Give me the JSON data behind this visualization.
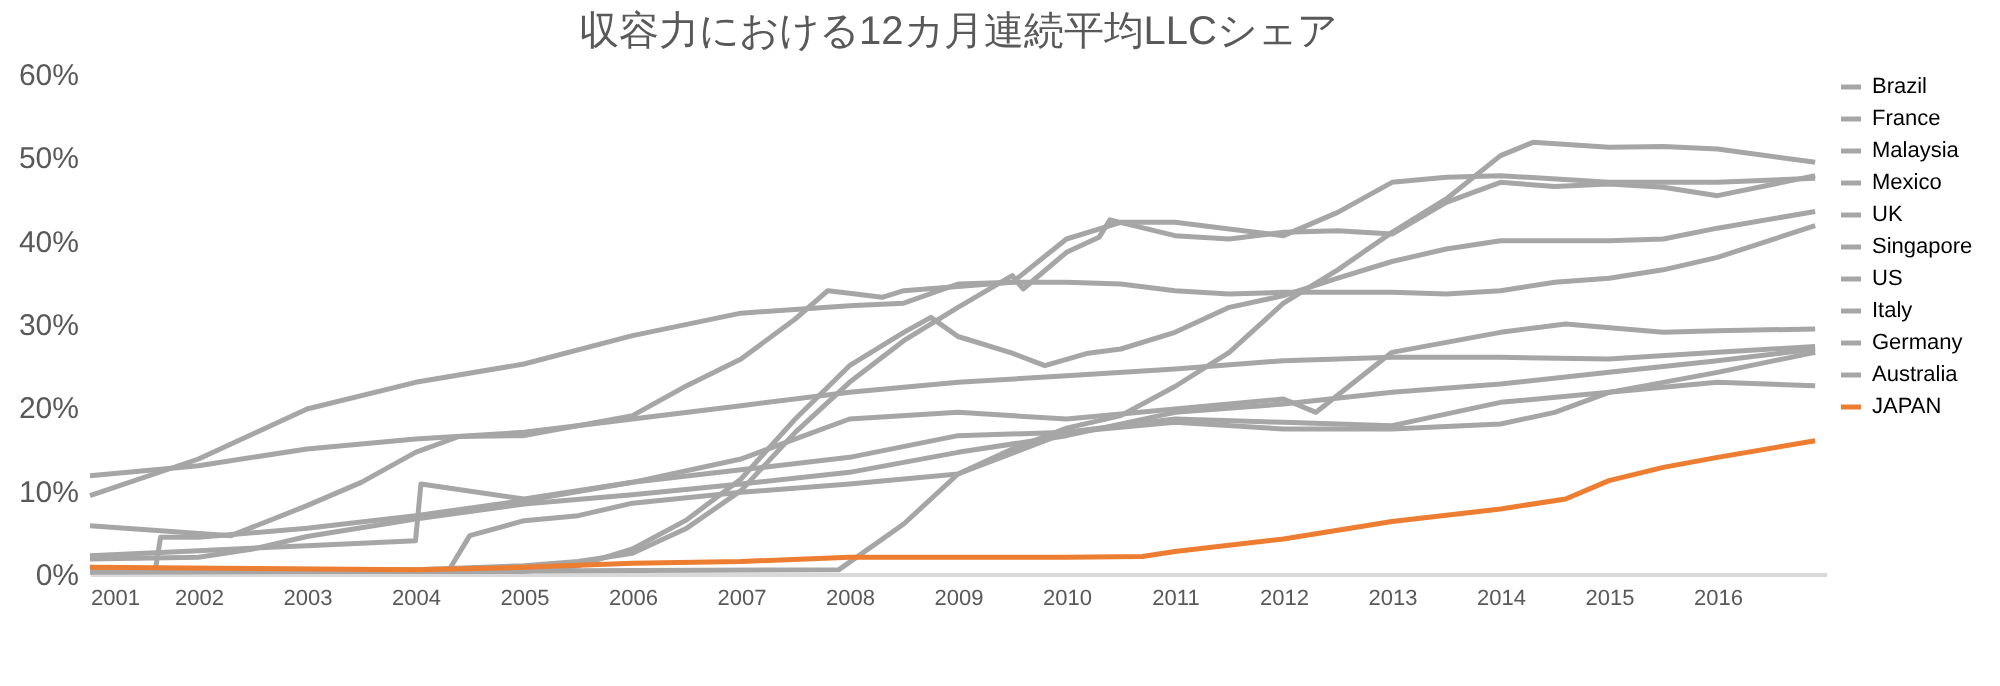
{
  "chart_data": {
    "type": "line",
    "title": "収容力における12カ月連続平均LLCシェア",
    "xlim": [
      2001,
      2017
    ],
    "xticks": [
      2001,
      2002,
      2003,
      2004,
      2005,
      2006,
      2007,
      2008,
      2009,
      2010,
      2011,
      2012,
      2013,
      2014,
      2015,
      2016
    ],
    "ylim": [
      0,
      60
    ],
    "yticks": [
      {
        "value": 0,
        "label": "0%"
      },
      {
        "value": 10,
        "label": "10%"
      },
      {
        "value": 20,
        "label": "20%"
      },
      {
        "value": 30,
        "label": "30%"
      },
      {
        "value": 40,
        "label": "40%"
      },
      {
        "value": 50,
        "label": "50%"
      },
      {
        "value": 60,
        "label": "60%"
      }
    ],
    "grid": false,
    "legend": "right",
    "series": [
      {
        "name": "Brazil",
        "color": "#a6a6a6",
        "x": [
          2001,
          2007.9,
          2008.5,
          2009,
          2009.5,
          2010,
          2010.5,
          2011,
          2011.5,
          2012,
          2012.5,
          2013,
          2013.5,
          2014,
          2014.3,
          2015,
          2015.5,
          2016,
          2016.9
        ],
        "values": [
          0.2,
          0.5,
          6,
          12,
          15,
          17.5,
          19,
          22.5,
          26.6,
          32.5,
          36.5,
          41,
          45,
          50.2,
          51.8,
          51.2,
          51.3,
          51,
          49.4
        ]
      },
      {
        "name": "France",
        "color": "#a6a6a6",
        "x": [
          2001,
          2004,
          2005,
          2005.5,
          2006,
          2006.5,
          2007,
          2007.5,
          2008,
          2008.5,
          2009,
          2009.5,
          2009.6,
          2010,
          2010.3,
          2010.4,
          2011,
          2011.5,
          2012,
          2012.5,
          2013,
          2013.5,
          2014,
          2014.5,
          2015,
          2015.5,
          2016,
          2016.9
        ],
        "values": [
          0.5,
          0.5,
          1,
          1.5,
          2.5,
          5.5,
          10,
          17,
          23,
          28,
          32,
          35.8,
          34.2,
          38.6,
          40.4,
          42.5,
          40.6,
          40.2,
          41,
          41.2,
          40.8,
          44.6,
          47,
          46.5,
          46.8,
          46.4,
          45.4,
          47.8
        ]
      },
      {
        "name": "Malaysia",
        "color": "#a6a6a6",
        "x": [
          2001,
          2002.3,
          2003,
          2003.5,
          2004,
          2004.4,
          2005,
          2005.5,
          2006,
          2006.5,
          2007,
          2007.5,
          2007.8,
          2008,
          2008.3,
          2008.5,
          2009,
          2009.5,
          2010,
          2010.5,
          2011,
          2011.5,
          2012,
          2012.5,
          2013,
          2013.5,
          2014,
          2015,
          2016,
          2016.9
        ],
        "values": [
          5.8,
          4.6,
          8.2,
          11,
          14.6,
          16.5,
          16.6,
          17.8,
          19,
          22.6,
          25.8,
          30.6,
          34,
          33.7,
          33.2,
          34,
          34.5,
          35,
          40.2,
          42.2,
          42.2,
          41.4,
          40.6,
          43.4,
          47,
          47.6,
          47.8,
          47,
          47,
          47.5
        ]
      },
      {
        "name": "Mexico",
        "color": "#a6a6a6",
        "x": [
          2001,
          2005,
          2005.5,
          2006,
          2006.5,
          2007,
          2007.5,
          2008,
          2008.5,
          2008.75,
          2009,
          2009.5,
          2009.8,
          2010.2,
          2010.5,
          2011,
          2011.5,
          2012,
          2012.5,
          2013,
          2013.5,
          2014,
          2015,
          2015.5,
          2016,
          2016.9
        ],
        "values": [
          0.3,
          0.3,
          1,
          3,
          6.5,
          11.4,
          18.6,
          25,
          29,
          30.8,
          28.5,
          26.5,
          25,
          26.5,
          27,
          29,
          32,
          33.4,
          35.5,
          37.5,
          39,
          40,
          40,
          40.2,
          41.5,
          43.5
        ]
      },
      {
        "name": "UK",
        "color": "#a6a6a6",
        "x": [
          2001,
          2002,
          2003,
          2004,
          2005,
          2006,
          2007,
          2008,
          2008.5,
          2009,
          2009.5,
          2010,
          2010.5,
          2011,
          2011.5,
          2012,
          2013,
          2013.5,
          2014,
          2014.5,
          2015,
          2015.5,
          2016,
          2016.9
        ],
        "values": [
          9.4,
          13.8,
          19.8,
          23,
          25.2,
          28.6,
          31.3,
          32.2,
          32.5,
          34.8,
          35,
          35,
          34.8,
          34,
          33.6,
          33.8,
          33.8,
          33.6,
          34,
          35,
          35.5,
          36.5,
          38,
          41.8
        ]
      },
      {
        "name": "Singapore",
        "color": "#a6a6a6",
        "x": [
          2001,
          2002,
          2003,
          2004,
          2004.05,
          2005,
          2006,
          2007,
          2008,
          2009,
          2010,
          2011,
          2012,
          2012.3,
          2013,
          2014,
          2014.6,
          2015.5,
          2016,
          2016.9
        ],
        "values": [
          2.2,
          2.8,
          3.4,
          4,
          10.8,
          9,
          11,
          13.8,
          18.6,
          19.4,
          18.6,
          19.8,
          21,
          19.4,
          26.6,
          29,
          30,
          29,
          29.2,
          29.4
        ]
      },
      {
        "name": "US",
        "color": "#a6a6a6",
        "x": [
          2001,
          2002,
          2003,
          2004,
          2005,
          2006,
          2007,
          2008,
          2009,
          2010,
          2011,
          2012,
          2013,
          2014,
          2015,
          2016,
          2016.9
        ],
        "values": [
          11.8,
          13,
          15,
          16.2,
          17,
          18.6,
          20.2,
          21.8,
          23,
          23.8,
          24.6,
          25.6,
          26,
          26,
          25.8,
          26.6,
          27.3
        ]
      },
      {
        "name": "Italy",
        "color": "#a6a6a6",
        "x": [
          2001,
          2002,
          2002.5,
          2003,
          2004,
          2005,
          2006,
          2007,
          2008,
          2009,
          2010,
          2011,
          2012,
          2013,
          2014,
          2015,
          2016,
          2016.9
        ],
        "values": [
          1.8,
          2,
          3,
          4.5,
          6.6,
          8.4,
          9.5,
          10.8,
          12.2,
          14.6,
          16.6,
          19.4,
          20.4,
          21.8,
          22.8,
          24.2,
          25.6,
          27
        ]
      },
      {
        "name": "Germany",
        "color": "#a6a6a6",
        "x": [
          2001,
          2001.6,
          2001.65,
          2002,
          2003,
          2004,
          2005,
          2006,
          2007,
          2008,
          2009,
          2010,
          2011,
          2012,
          2013,
          2014,
          2014.5,
          2015,
          2016,
          2016.9
        ],
        "values": [
          0.3,
          0.3,
          4.4,
          4.4,
          5.5,
          7,
          8.8,
          11,
          12.5,
          14,
          16.6,
          17,
          18.2,
          17.4,
          17.4,
          18,
          19.4,
          21.8,
          24.2,
          26.6
        ]
      },
      {
        "name": "Australia",
        "color": "#a6a6a6",
        "x": [
          2001,
          2004.3,
          2004.5,
          2005,
          2005.5,
          2006,
          2007,
          2008,
          2009,
          2010,
          2011,
          2012,
          2013,
          2014,
          2015,
          2016,
          2016.9
        ],
        "values": [
          0.3,
          0.3,
          4.6,
          6.4,
          7,
          8.5,
          9.8,
          10.8,
          12,
          17,
          18.6,
          18.2,
          17.8,
          20.6,
          21.8,
          23,
          22.6
        ]
      },
      {
        "name": "JAPAN",
        "color": "#ed7d31",
        "x": [
          2001,
          2004,
          2005,
          2006,
          2007,
          2008,
          2009,
          2010,
          2010.7,
          2011,
          2012,
          2013,
          2014,
          2014.6,
          2015,
          2015.5,
          2016,
          2016.9
        ],
        "values": [
          0.8,
          0.5,
          0.8,
          1.3,
          1.5,
          2,
          2,
          2,
          2.1,
          2.7,
          4.2,
          6.3,
          7.8,
          9,
          11.2,
          12.8,
          14,
          16
        ]
      }
    ]
  }
}
